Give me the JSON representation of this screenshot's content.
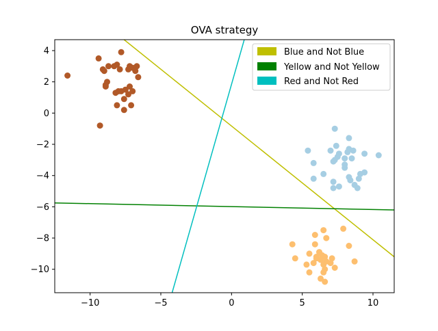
{
  "chart_data": {
    "type": "scatter",
    "title": "OVA strategy",
    "xlabel": "",
    "ylabel": "",
    "xlim": [
      -12.5,
      11.5
    ],
    "ylim": [
      -11.5,
      4.7
    ],
    "xticks": [
      -10,
      -5,
      0,
      5,
      10
    ],
    "yticks": [
      4,
      2,
      0,
      -2,
      -4,
      -6,
      -8,
      -10
    ],
    "grid": false,
    "legend_position": "top-right",
    "series": [
      {
        "color": "#a6cee3",
        "points": [
          [
            7.3,
            -1.0
          ],
          [
            8.3,
            -1.6
          ],
          [
            7.4,
            -2.1
          ],
          [
            8.3,
            -2.3
          ],
          [
            8.6,
            -2.4
          ],
          [
            7.0,
            -2.4
          ],
          [
            5.4,
            -2.4
          ],
          [
            7.6,
            -2.6
          ],
          [
            8.2,
            -2.5
          ],
          [
            9.4,
            -2.6
          ],
          [
            10.4,
            -2.7
          ],
          [
            7.5,
            -2.8
          ],
          [
            8.0,
            -2.9
          ],
          [
            7.3,
            -3.0
          ],
          [
            8.5,
            -2.9
          ],
          [
            7.2,
            -3.1
          ],
          [
            5.8,
            -3.2
          ],
          [
            8.0,
            -3.3
          ],
          [
            8.0,
            -3.5
          ],
          [
            9.1,
            -3.9
          ],
          [
            9.4,
            -3.8
          ],
          [
            6.5,
            -3.9
          ],
          [
            5.8,
            -4.2
          ],
          [
            8.3,
            -4.1
          ],
          [
            8.4,
            -4.3
          ],
          [
            9.0,
            -4.2
          ],
          [
            7.2,
            -4.4
          ],
          [
            8.7,
            -4.6
          ],
          [
            7.6,
            -4.7
          ],
          [
            7.2,
            -4.8
          ],
          [
            8.9,
            -4.8
          ]
        ]
      },
      {
        "color": "#fdbf6f",
        "points": [
          [
            6.5,
            -7.5
          ],
          [
            7.9,
            -7.4
          ],
          [
            5.9,
            -7.8
          ],
          [
            6.7,
            -8.0
          ],
          [
            4.3,
            -8.4
          ],
          [
            5.9,
            -8.4
          ],
          [
            8.3,
            -8.5
          ],
          [
            6.2,
            -8.9
          ],
          [
            6.4,
            -9.1
          ],
          [
            5.5,
            -9.0
          ],
          [
            6.6,
            -9.2
          ],
          [
            7.1,
            -9.3
          ],
          [
            4.5,
            -9.3
          ],
          [
            6.0,
            -9.3
          ],
          [
            6.3,
            -9.4
          ],
          [
            6.7,
            -9.5
          ],
          [
            7.0,
            -9.6
          ],
          [
            8.7,
            -9.5
          ],
          [
            5.8,
            -9.6
          ],
          [
            6.5,
            -9.7
          ],
          [
            5.3,
            -9.7
          ],
          [
            7.3,
            -9.9
          ],
          [
            6.6,
            -10.0
          ],
          [
            6.5,
            -10.2
          ],
          [
            5.5,
            -10.2
          ],
          [
            6.3,
            -10.6
          ],
          [
            6.6,
            -10.8
          ],
          [
            6.0,
            -9.2
          ]
        ]
      },
      {
        "color": "#b15928",
        "points": [
          [
            -7.8,
            3.9
          ],
          [
            -11.6,
            2.4
          ],
          [
            -9.4,
            3.5
          ],
          [
            -8.7,
            3.0
          ],
          [
            -8.3,
            3.0
          ],
          [
            -8.1,
            3.1
          ],
          [
            -7.2,
            3.0
          ],
          [
            -7.0,
            2.9
          ],
          [
            -6.7,
            3.0
          ],
          [
            -9.1,
            2.8
          ],
          [
            -9.0,
            2.7
          ],
          [
            -7.9,
            2.8
          ],
          [
            -7.3,
            2.8
          ],
          [
            -6.8,
            2.7
          ],
          [
            -6.6,
            2.3
          ],
          [
            -8.8,
            2.0
          ],
          [
            -8.9,
            1.8
          ],
          [
            -8.9,
            1.7
          ],
          [
            -7.2,
            1.7
          ],
          [
            -7.0,
            1.4
          ],
          [
            -7.5,
            1.5
          ],
          [
            -7.8,
            1.4
          ],
          [
            -8.0,
            1.4
          ],
          [
            -8.2,
            1.3
          ],
          [
            -7.3,
            1.2
          ],
          [
            -7.6,
            0.9
          ],
          [
            -7.1,
            0.5
          ],
          [
            -8.1,
            0.5
          ],
          [
            -7.6,
            0.2
          ],
          [
            -9.3,
            -0.8
          ]
        ]
      }
    ],
    "lines": [
      {
        "name": "Blue and Not Blue",
        "color": "#bfbf00",
        "x": [
          -7.6,
          11.5
        ],
        "y": [
          4.7,
          -9.2
        ]
      },
      {
        "name": "Yellow and Not Yellow",
        "color": "#008000",
        "x": [
          -12.5,
          11.5
        ],
        "y": [
          -5.75,
          -6.2
        ]
      },
      {
        "name": "Red and Not Red",
        "color": "#00bfbf",
        "x": [
          -4.2,
          0.9
        ],
        "y": [
          -11.5,
          4.7
        ]
      }
    ]
  }
}
